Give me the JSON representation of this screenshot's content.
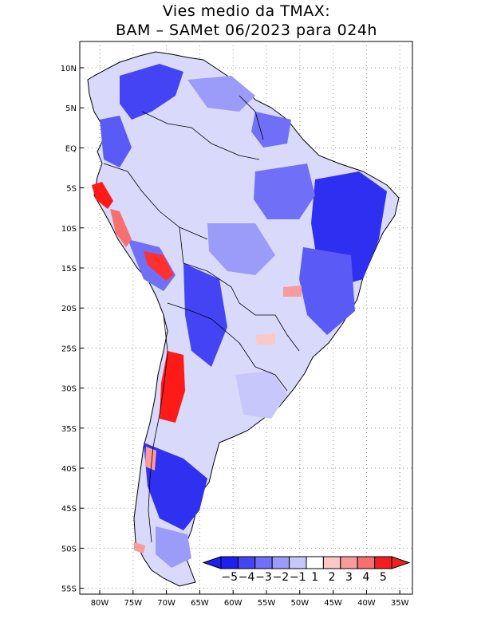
{
  "title_line1": "Vies medio da TMAX:",
  "title_line2": "BAM – SAMet 06/2023  para 024h",
  "lat_labels": [
    "10N",
    "5N",
    "EQ",
    "5S",
    "10S",
    "15S",
    "20S",
    "25S",
    "30S",
    "35S",
    "40S",
    "45S",
    "50S",
    "55S"
  ],
  "lon_labels": [
    "80W",
    "75W",
    "70W",
    "65W",
    "60W",
    "55W",
    "50W",
    "45W",
    "40W",
    "35W"
  ],
  "colorbar": {
    "labels": [
      "-5",
      "-4",
      "-3",
      "-2",
      "-1",
      "1",
      "2",
      "3",
      "4",
      "5"
    ],
    "colors": [
      "#1f1ff2",
      "#4444f5",
      "#6f6ff7",
      "#9b9bf9",
      "#c7c7fb",
      "#ffffff",
      "#fbc7c7",
      "#f99b9b",
      "#f76f6f",
      "#f21f1f"
    ]
  },
  "map_colors": {
    "land_light": "#d9d9fb",
    "land_mid": "#aeb0f8",
    "blue_strong": "#3b3bf0",
    "blue_mid": "#6f6ff7",
    "red_strong": "#ff1a1a",
    "red_light": "#f9a0a0",
    "border": "#000000",
    "grid": "#9a9a9a"
  },
  "map_icons": [
    "continent-shape",
    "country-borders",
    "bias-field"
  ]
}
